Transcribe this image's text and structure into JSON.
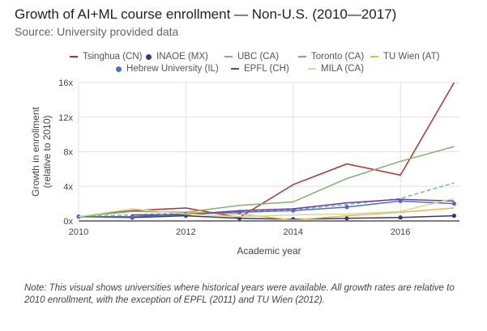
{
  "header": {
    "title": "Growth of AI+ML course enrollment — Non-U.S. (2010—2017)",
    "subtitle": "Source: University provided data"
  },
  "legend": [
    {
      "label": "Tsinghua (CN)",
      "color": "#b0303b",
      "style": "line"
    },
    {
      "label": "INAOE (MX)",
      "color": "#3b3480",
      "style": "dot"
    },
    {
      "label": "UBC (CA)",
      "color": "#7aaec7",
      "style": "dashed"
    },
    {
      "label": "Toronto (CA)",
      "color": "#7fb36a",
      "style": "line"
    },
    {
      "label": "TU Wien (AT)",
      "color": "#e6b84a",
      "style": "line"
    },
    {
      "label": "Hebrew University (IL)",
      "color": "#4a6fd0",
      "style": "dot"
    },
    {
      "label": "EPFL (CH)",
      "color": "#6a3fa6",
      "style": "line"
    },
    {
      "label": "MILA (CA)",
      "color": "#cfe08a",
      "style": "line"
    }
  ],
  "note": "Note: This visual shows universities where historical years were available. All growth rates are relative to 2010 enrollment, with the exception of EPFL (2011) and TU Wien (2012).",
  "chart_data": {
    "type": "line",
    "title": "Growth of AI+ML course enrollment — Non-U.S. (2010—2017)",
    "subtitle": "Source: University provided data",
    "xlabel": "Academic year",
    "ylabel": "Growth in enrollment (relative to 2010)",
    "x": [
      2010,
      2011,
      2012,
      2013,
      2014,
      2015,
      2016,
      2017
    ],
    "xticks": [
      "2010",
      "2012",
      "2014",
      "2016"
    ],
    "xtick_values": [
      2010,
      2012,
      2014,
      2016
    ],
    "xlim": [
      2010,
      2017.1
    ],
    "yticks": [
      "0x",
      "4x",
      "8x",
      "12x",
      "16x"
    ],
    "ytick_values": [
      0,
      4,
      8,
      12,
      16
    ],
    "ylim": [
      0,
      16
    ],
    "grid": true,
    "legend_position": "top",
    "series": [
      {
        "name": "Tsinghua (CN)",
        "color": "#b0303b",
        "style": "line",
        "values": [
          0.5,
          1.2,
          1.5,
          0.4,
          4.2,
          6.6,
          5.3,
          16.0
        ]
      },
      {
        "name": "INAOE (MX)",
        "color": "#3b3480",
        "style": "dot",
        "values": [
          0.5,
          0.4,
          0.6,
          0.3,
          0.2,
          0.3,
          0.4,
          0.6
        ]
      },
      {
        "name": "UBC (CA)",
        "color": "#7aaec7",
        "style": "dashed",
        "values": [
          0.5,
          0.7,
          0.9,
          1.1,
          1.3,
          1.9,
          2.6,
          4.4
        ]
      },
      {
        "name": "Toronto (CA)",
        "color": "#7fb36a",
        "style": "line",
        "values": [
          0.5,
          1.1,
          1.0,
          1.8,
          2.2,
          4.9,
          6.9,
          8.6
        ]
      },
      {
        "name": "TU Wien (AT)",
        "color": "#e6b84a",
        "style": "line",
        "values": [
          null,
          null,
          1.0,
          0.8,
          0.1,
          0.6,
          1.0,
          1.5
        ]
      },
      {
        "name": "Hebrew University (IL)",
        "color": "#4a6fd0",
        "style": "dot",
        "values": [
          0.5,
          0.5,
          0.8,
          1.0,
          1.2,
          1.6,
          2.3,
          2.0
        ]
      },
      {
        "name": "EPFL (CH)",
        "color": "#6a3fa6",
        "style": "line",
        "values": [
          null,
          0.7,
          0.7,
          1.2,
          1.4,
          2.1,
          2.5,
          2.3
        ]
      },
      {
        "name": "MILA (CA)",
        "color": "#cfe08a",
        "style": "line",
        "values": [
          0.5,
          1.4,
          0.8,
          0.5,
          0.7,
          0.8,
          1.1,
          2.6
        ]
      }
    ]
  }
}
